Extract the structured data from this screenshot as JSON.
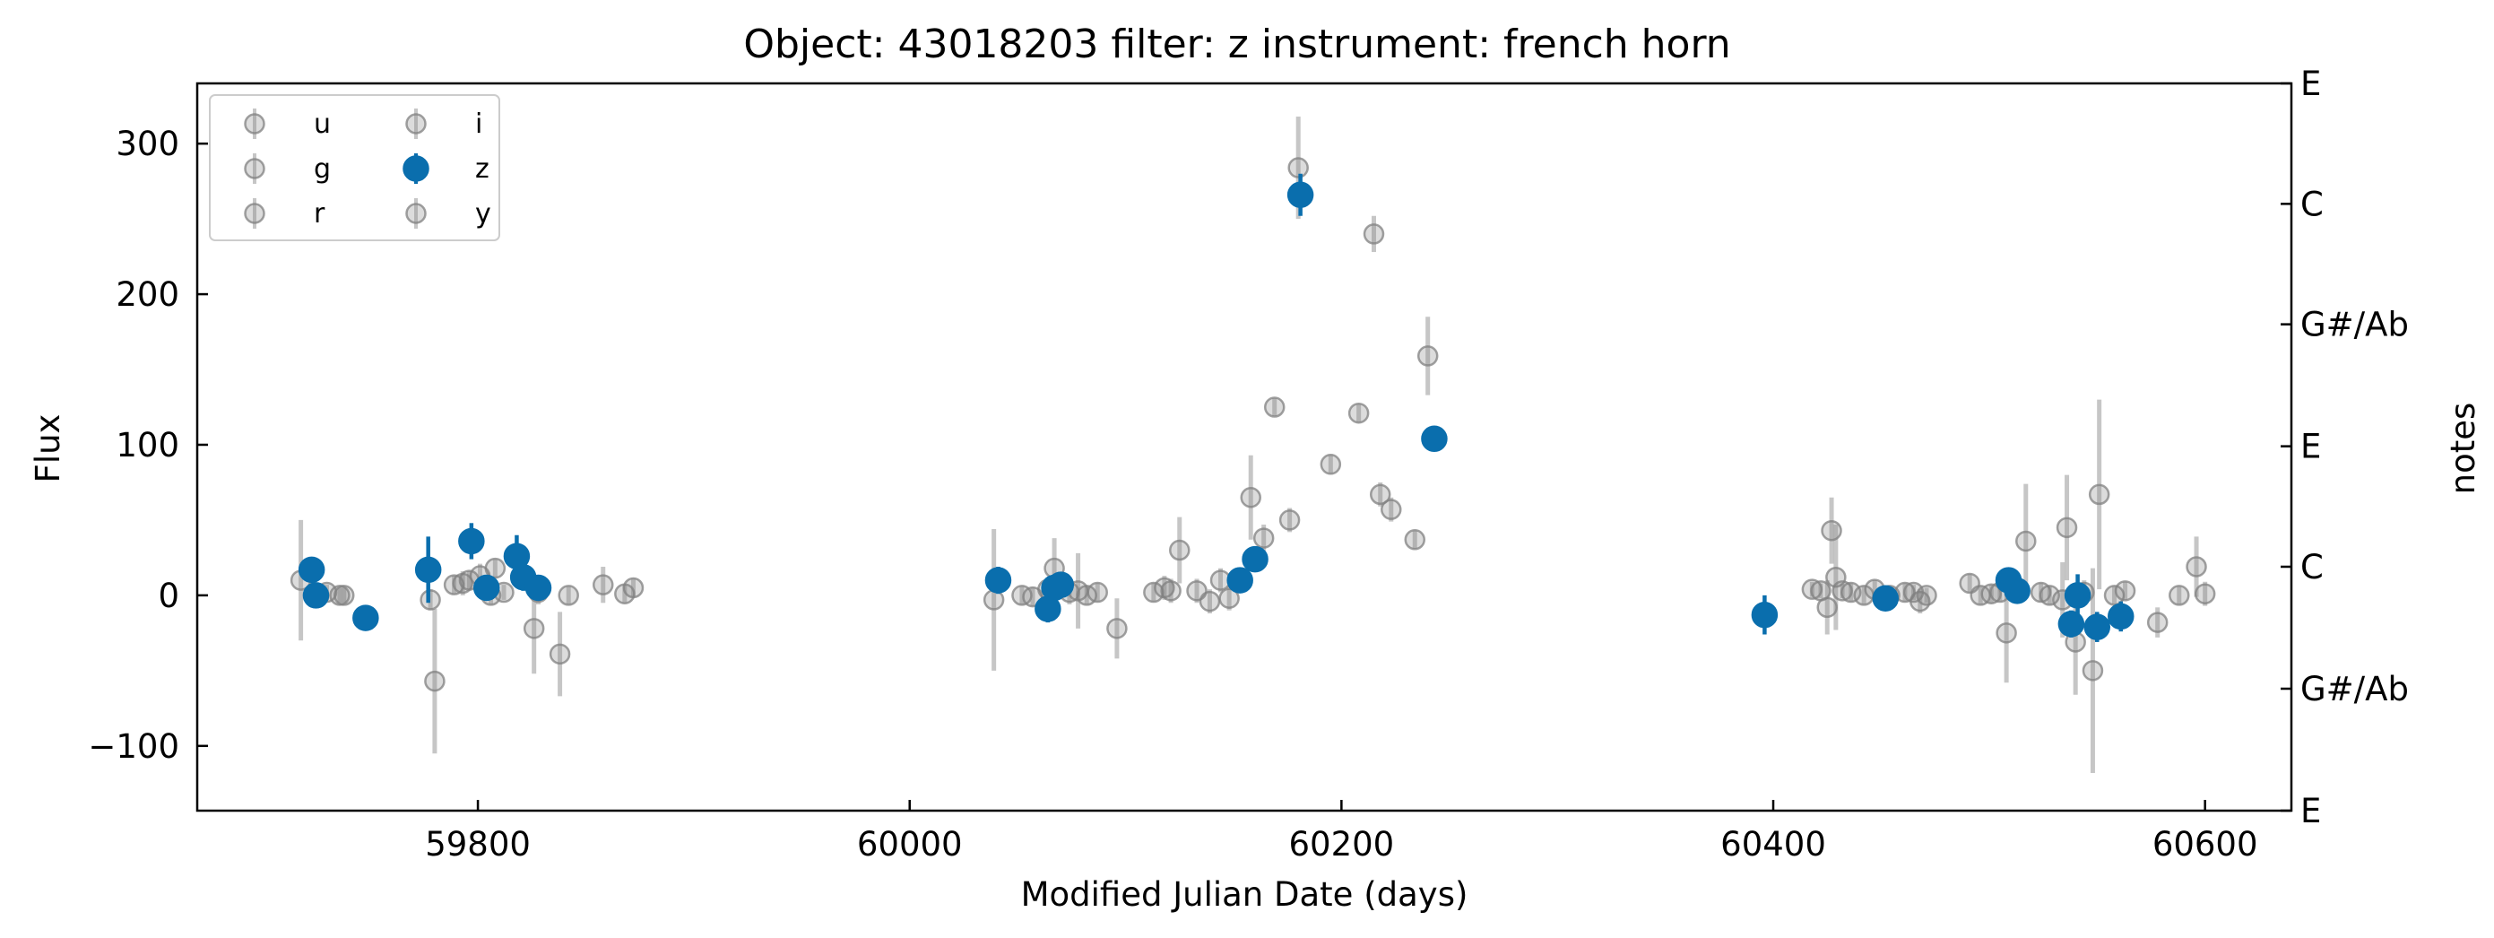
{
  "chart_data": {
    "type": "scatter",
    "title": "Object: 43018203 filter: z instrument: french horn",
    "xlabel": "Modified Julian Date (days)",
    "ylabel": "Flux",
    "y2label": "notes",
    "xlim": [
      59670,
      60640
    ],
    "ylim": [
      -143,
      340
    ],
    "x_ticks": [
      59800,
      60000,
      60200,
      60400,
      60600
    ],
    "y_ticks": [
      -100,
      0,
      100,
      200,
      300
    ],
    "x_tick_labels": [
      "59800",
      "60000",
      "60200",
      "60400",
      "60600"
    ],
    "y_tick_labels": [
      "−100",
      "0",
      "100",
      "200",
      "300"
    ],
    "y2_ticks": [
      {
        "label": "E",
        "flux": 340
      },
      {
        "label": "C",
        "flux": 260
      },
      {
        "label": "G#/Ab",
        "flux": 180
      },
      {
        "label": "E",
        "flux": 99
      },
      {
        "label": "C",
        "flux": 19
      },
      {
        "label": "G#/Ab",
        "flux": -62
      },
      {
        "label": "E",
        "flux": -143
      }
    ],
    "grid": false,
    "legend_position": "top-left",
    "legend": [
      "u",
      "g",
      "r",
      "i",
      "z",
      "y"
    ],
    "highlight_filter": "z",
    "colors": {
      "highlight": "#0a6ead",
      "other": "#808080"
    },
    "series": [
      {
        "name": "z",
        "x": [
          59723,
          59725,
          59748,
          59777,
          59797,
          59804,
          59818,
          59821,
          59828,
          60041,
          60064,
          60067,
          60070,
          60153,
          60160,
          60181,
          60243,
          60396,
          60452,
          60509,
          60513,
          60538,
          60541,
          60550,
          60561
        ],
        "y": [
          17,
          0,
          -15,
          17,
          36,
          5,
          26,
          12,
          5,
          10,
          -9,
          5,
          7,
          10,
          24,
          266,
          104,
          -13,
          -2,
          10,
          3,
          -19,
          0,
          -21,
          -14
        ],
        "yerr": [
          8,
          8,
          6,
          22,
          12,
          8,
          14,
          9,
          6,
          9,
          9,
          8,
          7,
          7,
          8,
          14,
          6,
          13,
          7,
          8,
          8,
          9,
          14,
          10,
          10
        ]
      },
      {
        "name": "other filters",
        "x": [
          59718,
          59730,
          59736,
          59738,
          59778,
          59780,
          59789,
          59793,
          59796,
          59801,
          59806,
          59808,
          59812,
          59826,
          59828,
          59838,
          59842,
          59858,
          59868,
          59872,
          60039,
          60052,
          60057,
          60064,
          60067,
          60074,
          60078,
          60082,
          60087,
          60096,
          60113,
          60118,
          60121,
          60125,
          60133,
          60139,
          60144,
          60148,
          60158,
          60164,
          60169,
          60176,
          60180,
          60195,
          60208,
          60215,
          60218,
          60223,
          60234,
          60240,
          60418,
          60422,
          60425,
          60427,
          60429,
          60432,
          60436,
          60442,
          60447,
          60454,
          60461,
          60465,
          60468,
          60471,
          60491,
          60496,
          60501,
          60505,
          60508,
          60513,
          60517,
          60524,
          60528,
          60534,
          60536,
          60540,
          60544,
          60548,
          60551,
          60558,
          60563,
          60578,
          60588,
          60596,
          60600
        ],
        "y": [
          10,
          2,
          0,
          0,
          -3,
          -57,
          7,
          8,
          10,
          13,
          0,
          18,
          2,
          -22,
          2,
          -39,
          0,
          7,
          1,
          5,
          -3,
          0,
          -1,
          4,
          18,
          2,
          3,
          0,
          2,
          -22,
          2,
          5,
          3,
          30,
          3,
          -4,
          10,
          -2,
          65,
          38,
          125,
          50,
          284,
          87,
          121,
          240,
          67,
          57,
          37,
          159,
          4,
          3,
          -8,
          43,
          12,
          3,
          2,
          0,
          4,
          0,
          2,
          2,
          -4,
          0,
          8,
          0,
          1,
          2,
          -25,
          5,
          36,
          2,
          0,
          -3,
          45,
          -31,
          2,
          -50,
          67,
          0,
          3,
          -18,
          0,
          19,
          1
        ],
        "yerr": [
          40,
          5,
          5,
          5,
          7,
          48,
          6,
          8,
          6,
          8,
          6,
          6,
          5,
          30,
          8,
          28,
          6,
          12,
          6,
          6,
          47,
          6,
          6,
          8,
          20,
          8,
          25,
          6,
          6,
          20,
          6,
          8,
          8,
          22,
          8,
          8,
          8,
          8,
          28,
          9,
          6,
          8,
          34,
          6,
          6,
          12,
          8,
          8,
          6,
          26,
          5,
          5,
          18,
          22,
          35,
          5,
          6,
          6,
          6,
          6,
          6,
          5,
          8,
          5,
          6,
          6,
          6,
          6,
          33,
          8,
          38,
          6,
          6,
          25,
          35,
          35,
          8,
          68,
          63,
          6,
          6,
          10,
          6,
          20,
          8
        ]
      }
    ]
  }
}
